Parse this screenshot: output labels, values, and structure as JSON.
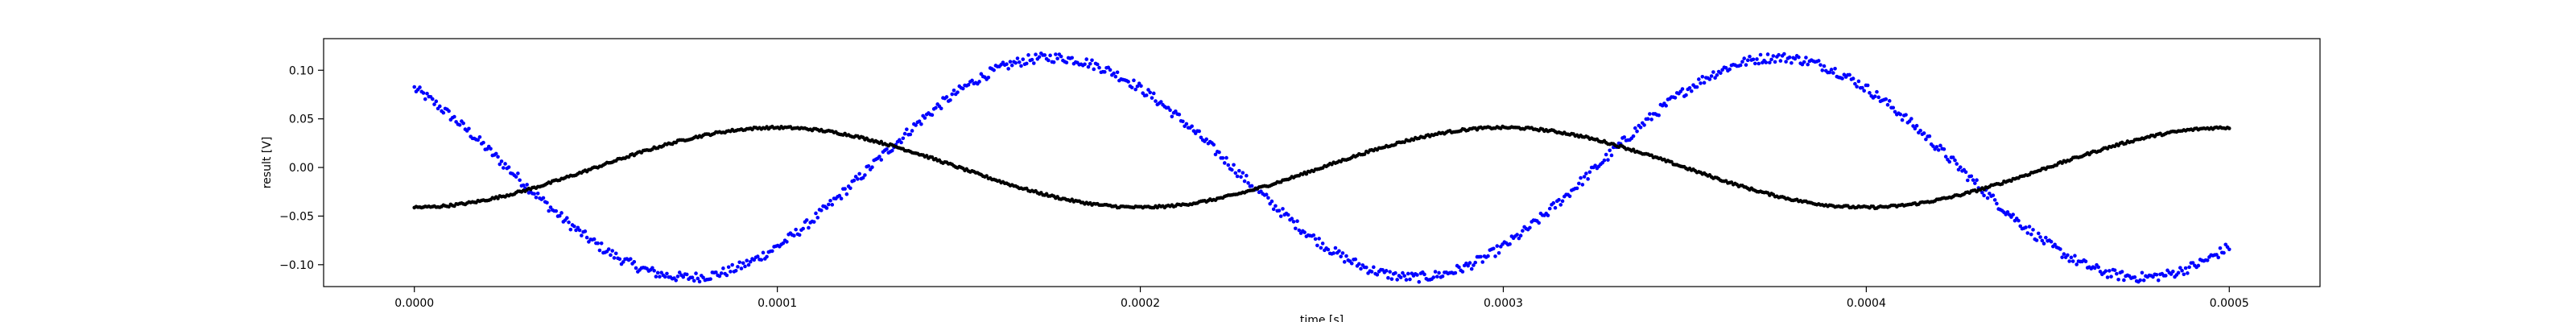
{
  "chart_data": {
    "type": "scatter",
    "xlabel": "time [s]",
    "ylabel": "result [V]",
    "xlim": [
      -2.5e-05,
      0.000525
    ],
    "ylim": [
      -0.1225,
      0.1325
    ],
    "xticks": [
      0.0,
      0.0001,
      0.0002,
      0.0003,
      0.0004,
      0.0005
    ],
    "xtick_labels": [
      "0.0000",
      "0.0001",
      "0.0002",
      "0.0003",
      "0.0004",
      "0.0005"
    ],
    "yticks": [
      -0.1,
      -0.05,
      0.0,
      0.05,
      0.1
    ],
    "ytick_labels": [
      "−0.10",
      "−0.05",
      "0.00",
      "0.05",
      "0.10"
    ],
    "grid": false,
    "series": [
      {
        "color": "#0000ff",
        "marker": "dot",
        "model": "sinusoid",
        "period": 0.0002,
        "amplitude": 0.113,
        "x_start": 0.0,
        "x_end": 0.0005,
        "n_points": 1000,
        "noise": 0.005,
        "samples": [
          [
            0.0,
            0.087
          ],
          [
            7.8e-05,
            -0.105
          ],
          [
            0.000175,
            0.116
          ],
          [
            0.000275,
            -0.108
          ],
          [
            0.000375,
            0.117
          ],
          [
            0.0005,
            -0.076
          ]
        ]
      },
      {
        "color": "#000000",
        "marker": "dot",
        "model": "sinusoid",
        "period": 0.0002,
        "amplitude": 0.041,
        "x_start": 0.0,
        "x_end": 0.0005,
        "n_points": 1000,
        "noise": 0.0012,
        "samples": [
          [
            0.0,
            -0.046
          ],
          [
            0.0001,
            0.036
          ],
          [
            0.0002,
            -0.046
          ],
          [
            0.0003,
            0.036
          ],
          [
            0.0004,
            -0.046
          ],
          [
            0.0005,
            0.036
          ]
        ]
      }
    ]
  }
}
